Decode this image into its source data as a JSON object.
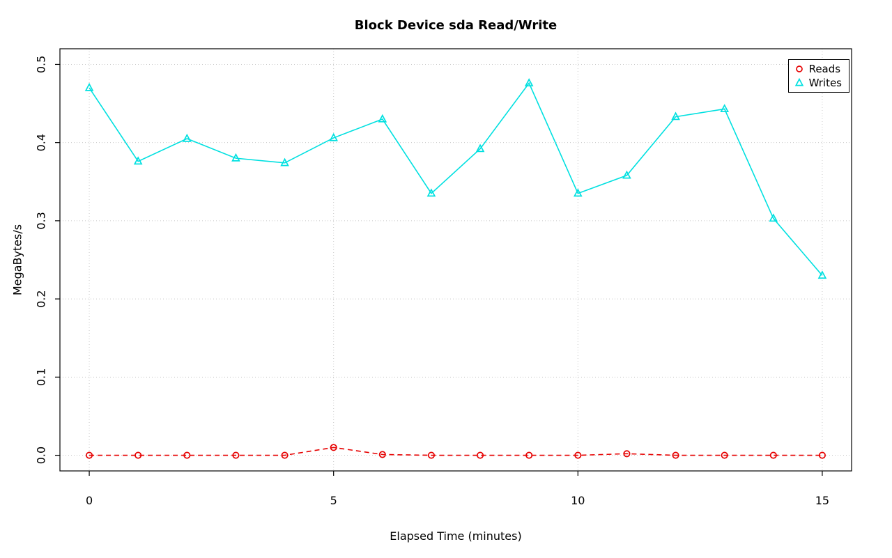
{
  "chart_data": {
    "type": "line",
    "title": "Block Device sda Read/Write",
    "xlabel": "Elapsed Time (minutes)",
    "ylabel": "MegaBytes/s",
    "xlim": [
      0,
      15
    ],
    "ylim": [
      0,
      0.5
    ],
    "xticks": [
      0,
      5,
      10,
      15
    ],
    "xtick_labels": [
      "0",
      "5",
      "10",
      "15"
    ],
    "yticks": [
      0.0,
      0.1,
      0.2,
      0.3,
      0.4,
      0.5
    ],
    "ytick_labels": [
      "0.0",
      "0.1",
      "0.2",
      "0.3",
      "0.4",
      "0.5"
    ],
    "grid": true,
    "grid_color": "#c8c8c8",
    "legend_position": "top-right",
    "x": [
      0,
      1,
      2,
      3,
      4,
      5,
      6,
      7,
      8,
      9,
      10,
      11,
      12,
      13,
      14,
      15
    ],
    "series": [
      {
        "name": "Reads",
        "color": "#e60000",
        "marker": "circle",
        "line": "dashed",
        "values": [
          0.0,
          0.0,
          0.0,
          0.0,
          0.0,
          0.01,
          0.001,
          0.0,
          0.0,
          0.0,
          0.0,
          0.002,
          0.0,
          0.0,
          0.0,
          0.0
        ]
      },
      {
        "name": "Writes",
        "color": "#00e0e0",
        "marker": "triangle-up",
        "line": "solid",
        "values": [
          0.47,
          0.376,
          0.405,
          0.38,
          0.374,
          0.406,
          0.43,
          0.335,
          0.392,
          0.476,
          0.335,
          0.358,
          0.433,
          0.443,
          0.303,
          0.23
        ]
      }
    ]
  }
}
